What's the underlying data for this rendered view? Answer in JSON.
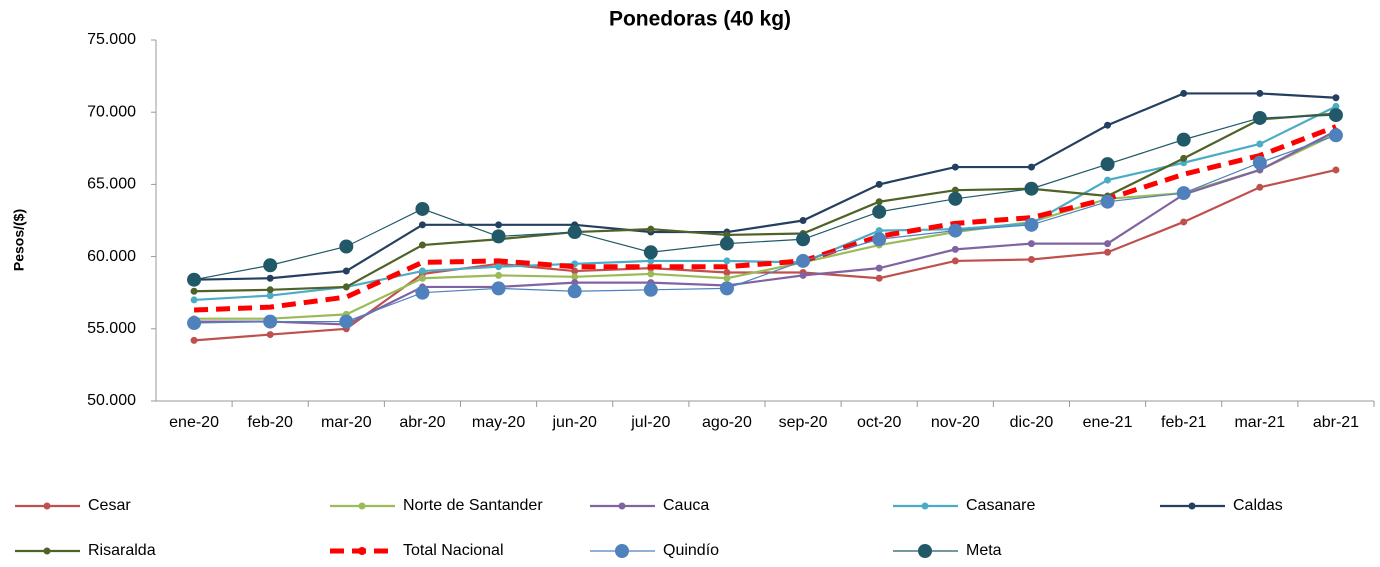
{
  "chart_data": {
    "type": "line",
    "title": "Ponedoras (40 kg)",
    "y_label": "Pesos/($)",
    "categories": [
      "ene-20",
      "feb-20",
      "mar-20",
      "abr-20",
      "may-20",
      "jun-20",
      "jul-20",
      "ago-20",
      "sep-20",
      "oct-20",
      "nov-20",
      "dic-20",
      "ene-21",
      "feb-21",
      "mar-21",
      "abr-21"
    ],
    "ylim": [
      50000,
      75000
    ],
    "yticks": [
      {
        "value": 50000,
        "label": "50.000"
      },
      {
        "value": 55000,
        "label": "55.000"
      },
      {
        "value": 60000,
        "label": "60.000"
      },
      {
        "value": 65000,
        "label": "65.000"
      },
      {
        "value": 70000,
        "label": "70.000"
      },
      {
        "value": 75000,
        "label": "75.000"
      }
    ],
    "grid": false,
    "legend": "bottom",
    "series": [
      {
        "name": "Cesar",
        "color": "#c0504d",
        "marker": "small",
        "values": [
          54200,
          54600,
          55000,
          58800,
          59500,
          59000,
          59200,
          58900,
          58900,
          58500,
          59700,
          59800,
          60300,
          62400,
          64800,
          66000
        ]
      },
      {
        "name": "Norte de Santander",
        "color": "#9bbb59",
        "marker": "small",
        "values": [
          55700,
          55700,
          56000,
          58500,
          58700,
          58600,
          58800,
          58500,
          59600,
          60800,
          61700,
          62400,
          64000,
          64400,
          66000,
          68500
        ]
      },
      {
        "name": "Cauca",
        "color": "#8064a2",
        "marker": "small",
        "values": [
          55500,
          55500,
          55300,
          57900,
          57900,
          58200,
          58200,
          58000,
          58700,
          59200,
          60500,
          60900,
          60900,
          64300,
          66000,
          68700
        ]
      },
      {
        "name": "Casanare",
        "color": "#4bacc6",
        "marker": "small",
        "values": [
          57000,
          57300,
          57900,
          59000,
          59300,
          59500,
          59700,
          59700,
          59600,
          61800,
          61900,
          62300,
          65300,
          66500,
          67800,
          70400
        ]
      },
      {
        "name": "Caldas",
        "color": "#243f60",
        "marker": "small",
        "values": [
          58400,
          58500,
          59000,
          62200,
          62200,
          62200,
          61700,
          61700,
          62500,
          65000,
          66200,
          66200,
          69100,
          71300,
          71300,
          71000
        ]
      },
      {
        "name": "Risaralda",
        "color": "#4f6228",
        "marker": "small",
        "values": [
          57600,
          57700,
          57900,
          60800,
          61200,
          61700,
          61900,
          61500,
          61600,
          63800,
          64600,
          64700,
          64200,
          66800,
          69500,
          69900
        ]
      },
      {
        "name": "Total Nacional",
        "color": "#ff0000",
        "marker": "none",
        "style": "dashed",
        "values": [
          56300,
          56500,
          57200,
          59600,
          59700,
          59300,
          59300,
          59300,
          59700,
          61400,
          62300,
          62700,
          64000,
          65700,
          67000,
          69000
        ]
      },
      {
        "name": "Quindío",
        "color": "#4f81bd",
        "marker": "large",
        "style": "thin",
        "values": [
          55400,
          55500,
          55500,
          57500,
          57800,
          57600,
          57700,
          57800,
          59700,
          61200,
          61800,
          62200,
          63800,
          64400,
          66500,
          68400
        ]
      },
      {
        "name": "Meta",
        "color": "#215968",
        "marker": "large",
        "style": "thin",
        "values": [
          58400,
          59400,
          60700,
          63300,
          61400,
          61700,
          60300,
          60900,
          61200,
          63100,
          64000,
          64700,
          66400,
          68100,
          69600,
          69800
        ]
      }
    ]
  }
}
